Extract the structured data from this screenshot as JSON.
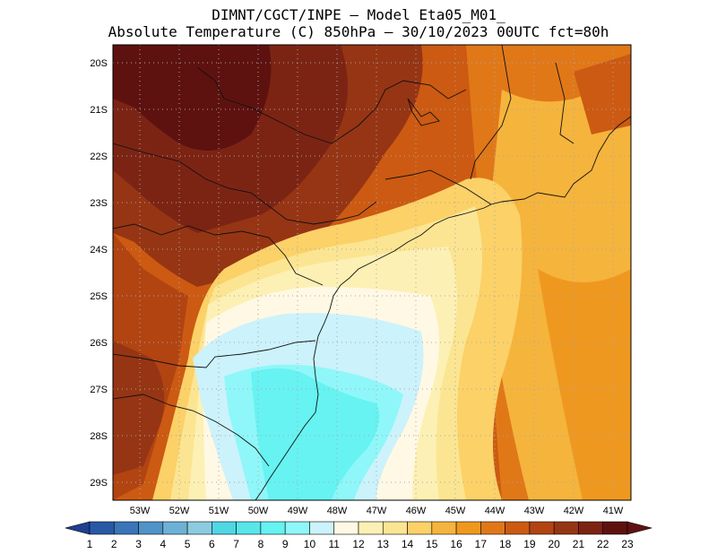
{
  "header": {
    "line1": "DIMNT/CGCT/INPE —  Model Eta05_M01_",
    "line2": "Absolute Temperature (C) 850hPa —  30/10/2023 00UTC fct=80h"
  },
  "map": {
    "lon_range": [
      -53.5,
      -40.5
    ],
    "lat_range": [
      -29.4,
      -19.8
    ],
    "lat_ticks": [
      "20S",
      "21S",
      "22S",
      "23S",
      "24S",
      "25S",
      "26S",
      "27S",
      "28S",
      "29S"
    ],
    "lon_ticks": [
      "53W",
      "52W",
      "51W",
      "50W",
      "49W",
      "48W",
      "47W",
      "46W",
      "45W",
      "44W",
      "43W",
      "42W",
      "41W"
    ],
    "grid": "dotted",
    "field_description": "850 hPa temperature, warm (20-23C) over northwest interior, cold tongue (9-11C) over southeast coastal Santa Catarina and adjacent ocean"
  },
  "colorbar": {
    "labels": [
      "1",
      "2",
      "3",
      "4",
      "5",
      "6",
      "7",
      "8",
      "9",
      "10",
      "11",
      "12",
      "13",
      "14",
      "15",
      "16",
      "17",
      "18",
      "19",
      "20",
      "21",
      "22",
      "23"
    ],
    "colors": [
      "#1f3f8f",
      "#2958a6",
      "#3a75b8",
      "#4f93c7",
      "#6db1d6",
      "#8dcbe0",
      "#4fd7e4",
      "#58e6ea",
      "#66f3f2",
      "#8ff7f9",
      "#ccf2fb",
      "#fff8e4",
      "#fdf0b4",
      "#fce592",
      "#fbd168",
      "#f5b43c",
      "#ef9820",
      "#e07818",
      "#cc5a12",
      "#b24412",
      "#963514",
      "#7c2414",
      "#5e1210"
    ],
    "unit": "C"
  }
}
